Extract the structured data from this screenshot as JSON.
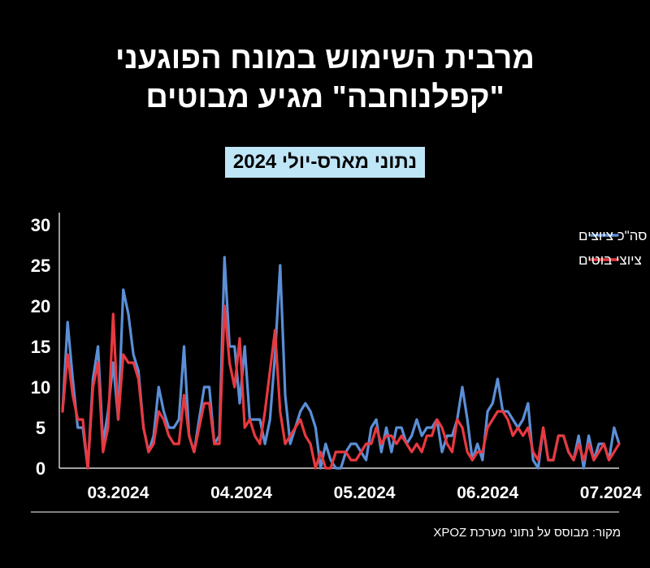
{
  "chart_data": {
    "type": "line",
    "title": "מרבית השימוש במונח הפוגעני \"קפלנוחבה\" מגיע מבוטים",
    "title_lines": [
      "מרבית השימוש במונח הפוגעני",
      "\"קפלנוחבה\" מגיע מבוטים"
    ],
    "subtitle": "נתוני מארס-יולי 2024",
    "source": "מקור: מבוסס על נתוני מערכת XPOZ",
    "ylim": [
      0,
      30
    ],
    "yticks": [
      0,
      5,
      10,
      15,
      20,
      25,
      30
    ],
    "xlim": [
      0,
      100
    ],
    "x_tick_labels": [
      {
        "label": "03.2024",
        "x": 5
      },
      {
        "label": "04.2024",
        "x": 27
      },
      {
        "label": "05.2024",
        "x": 49
      },
      {
        "label": "06.2024",
        "x": 71
      },
      {
        "label": "07.2024",
        "x": 93
      }
    ],
    "series": [
      {
        "name": "סה\"כ ציוצים",
        "color": "#5b8fd6",
        "values": [
          7,
          18,
          11,
          5,
          5,
          0,
          11,
          15,
          3,
          7,
          13,
          6,
          22,
          19,
          14,
          12,
          5,
          2,
          4,
          10,
          7,
          5,
          5,
          6,
          15,
          4,
          2,
          6,
          10,
          10,
          3,
          4,
          26,
          15,
          15,
          8,
          15,
          6,
          6,
          6,
          3,
          6,
          14,
          25,
          9,
          3,
          5,
          7,
          8,
          7,
          5,
          0,
          3,
          1,
          0,
          0,
          2,
          3,
          3,
          2,
          1,
          5,
          6,
          2,
          5,
          2,
          5,
          5,
          3,
          4,
          6,
          4,
          5,
          5,
          6,
          2,
          4,
          4,
          6,
          10,
          6,
          1,
          3,
          1,
          7,
          8,
          11,
          7,
          7,
          6,
          5,
          6,
          8,
          1,
          0,
          5,
          1,
          1,
          4,
          4,
          2,
          1,
          4,
          0,
          4,
          1,
          3,
          3,
          1,
          5,
          3
        ],
        "shown_in_legend": true
      },
      {
        "name": "ציוצי בוטים",
        "color": "#e8393f",
        "values": [
          7,
          14,
          9,
          6,
          6,
          0,
          10,
          13,
          2,
          5,
          19,
          6,
          14,
          13,
          13,
          11,
          5,
          2,
          3,
          7,
          6,
          4,
          3,
          3,
          9,
          4,
          2,
          5,
          8,
          8,
          3,
          3,
          20,
          13,
          10,
          16,
          5,
          6,
          4,
          3,
          7,
          12,
          17,
          7,
          3,
          4,
          5,
          6,
          4,
          3,
          0,
          2,
          0,
          0,
          2,
          2,
          2,
          1,
          1,
          2,
          3,
          3,
          5,
          3,
          4,
          4,
          3,
          4,
          3,
          2,
          3,
          2,
          4,
          4,
          6,
          5,
          3,
          2,
          6,
          5,
          2,
          1,
          2,
          2,
          5,
          6,
          7,
          7,
          6,
          4,
          5,
          4,
          5,
          2,
          1,
          5,
          1,
          1,
          4,
          4,
          2,
          1,
          3,
          1,
          3,
          1,
          2,
          3,
          1,
          2,
          3
        ],
        "shown_in_legend": true
      }
    ],
    "legend_position": "top-right"
  }
}
